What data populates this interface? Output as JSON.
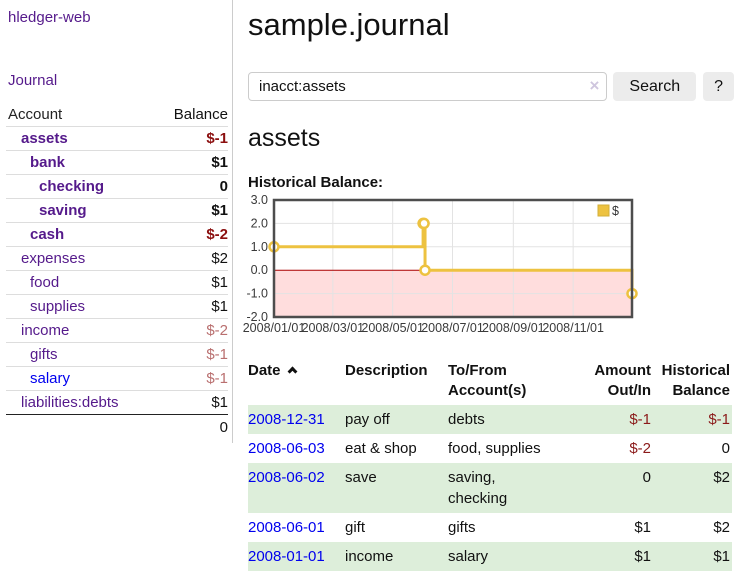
{
  "app": {
    "brand": "hledger-web",
    "nav_journal": "Journal"
  },
  "sidebar": {
    "header": {
      "account": "Account",
      "balance": "Balance"
    },
    "accounts": [
      {
        "name": "assets",
        "balance": "$-1"
      },
      {
        "name": "bank",
        "balance": "$1"
      },
      {
        "name": "checking",
        "balance": "0"
      },
      {
        "name": "saving",
        "balance": "$1"
      },
      {
        "name": "cash",
        "balance": "$-2"
      },
      {
        "name": "expenses",
        "balance": "$2"
      },
      {
        "name": "food",
        "balance": "$1"
      },
      {
        "name": "supplies",
        "balance": "$1"
      },
      {
        "name": "income",
        "balance": "$-2"
      },
      {
        "name": "gifts",
        "balance": "$-1"
      },
      {
        "name": "salary",
        "balance": "$-1"
      },
      {
        "name": "liabilities:debts",
        "balance": "$1"
      }
    ],
    "total": "0"
  },
  "header": {
    "title": "sample.journal"
  },
  "search": {
    "value": "inacct:assets",
    "clear_label": "×",
    "button_label": "Search",
    "help_label": "?"
  },
  "account_page": {
    "title": "assets",
    "chart_label": "Historical Balance:"
  },
  "chart_data": {
    "type": "line",
    "step": true,
    "title": "Historical Balance:",
    "legend": [
      {
        "label": "$",
        "color": "#edc240"
      }
    ],
    "legend_position": "top-right",
    "grid": true,
    "xlim": [
      "2008-01-01",
      "2008-12-31"
    ],
    "total_days": 365,
    "ylim": [
      -2,
      3
    ],
    "y_ticks": [
      "3.0",
      "2.0",
      "1.0",
      "0.0",
      "-1.0",
      "-2.0"
    ],
    "x_ticks": [
      {
        "label": "2008/01/01",
        "day": 0
      },
      {
        "label": "2008/03/01",
        "day": 60
      },
      {
        "label": "2008/05/01",
        "day": 121
      },
      {
        "label": "2008/07/01",
        "day": 182
      },
      {
        "label": "2008/09/01",
        "day": 244
      },
      {
        "label": "2008/11/01",
        "day": 305
      }
    ],
    "series": [
      {
        "name": "$",
        "points": [
          {
            "date": "2008-01-01",
            "day": 0,
            "value": 1
          },
          {
            "date": "2008-06-01",
            "day": 152,
            "value": 2
          },
          {
            "date": "2008-06-02",
            "day": 153,
            "value": 2
          },
          {
            "date": "2008-06-03",
            "day": 154,
            "value": 0
          },
          {
            "date": "2008-12-31",
            "day": 365,
            "value": -1
          }
        ]
      }
    ],
    "colors": {
      "line": "#edc240",
      "negative_fill": "#ffdddd",
      "zero_line": "#aa0000",
      "grid": "#e3e3e3",
      "border": "#4d4d4d",
      "tick_text": "#3a3a3a"
    }
  },
  "register": {
    "columns": [
      {
        "label": "Date"
      },
      {
        "label": "Description"
      },
      {
        "label": "To/From\nAccount(s)"
      },
      {
        "label": "Amount\nOut/In"
      },
      {
        "label": "Historical\nBalance"
      }
    ],
    "rows": [
      {
        "date": "2008-12-31",
        "description": "pay off",
        "accounts": "debts",
        "amount": "$-1",
        "balance": "$-1"
      },
      {
        "date": "2008-06-03",
        "description": "eat & shop",
        "accounts": "food, supplies",
        "amount": "$-2",
        "balance": "0"
      },
      {
        "date": "2008-06-02",
        "description": "save",
        "accounts": "saving,\nchecking",
        "amount": "0",
        "balance": "$2"
      },
      {
        "date": "2008-06-01",
        "description": "gift",
        "accounts": "gifts",
        "amount": "$1",
        "balance": "$2"
      },
      {
        "date": "2008-01-01",
        "description": "income",
        "accounts": "salary",
        "amount": "$1",
        "balance": "$1"
      }
    ]
  }
}
